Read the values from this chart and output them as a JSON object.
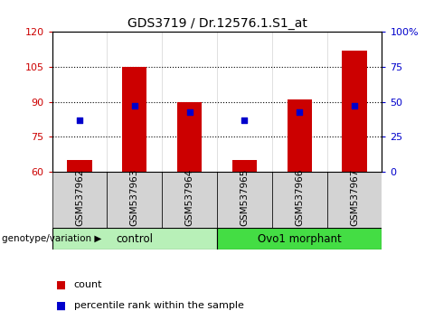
{
  "title": "GDS3719 / Dr.12576.1.S1_at",
  "samples": [
    "GSM537962",
    "GSM537963",
    "GSM537964",
    "GSM537965",
    "GSM537966",
    "GSM537967"
  ],
  "bar_bottom": 60,
  "bar_tops": [
    65,
    105,
    90,
    65,
    91,
    112
  ],
  "percentile_values": [
    37,
    47,
    43,
    37,
    43,
    47
  ],
  "ylim_left": [
    60,
    120
  ],
  "ylim_right": [
    0,
    100
  ],
  "yticks_left": [
    60,
    75,
    90,
    105,
    120
  ],
  "yticks_right": [
    0,
    25,
    50,
    75,
    100
  ],
  "bar_color": "#CC0000",
  "dot_color": "#0000CC",
  "bar_width": 0.45,
  "background_color": "#ffffff",
  "plot_bg_color": "#ffffff",
  "grid_color": "#000000",
  "left_label_color": "#CC0000",
  "right_label_color": "#0000CC",
  "genotype_label": "genotype/variation",
  "legend_count_label": "count",
  "legend_percentile_label": "percentile rank within the sample",
  "tick_label_bg": "#d3d3d3",
  "group_info": [
    {
      "start": 0,
      "end": 2,
      "label": "control",
      "color": "#b8f0b8"
    },
    {
      "start": 3,
      "end": 5,
      "label": "Ovo1 morphant",
      "color": "#44dd44"
    }
  ]
}
